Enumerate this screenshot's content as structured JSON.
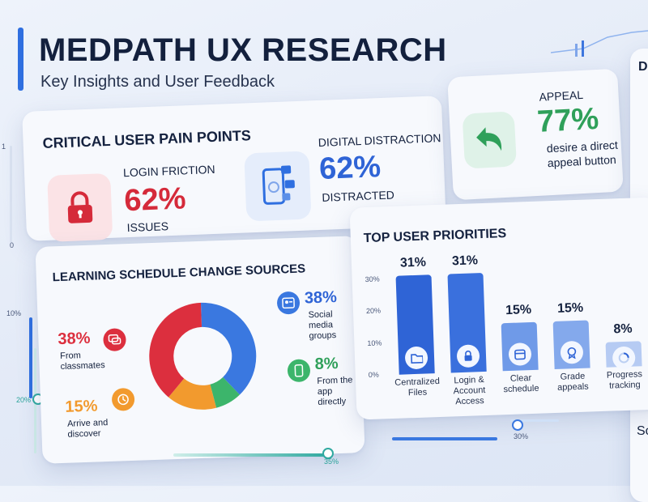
{
  "header": {
    "title": "MEDPATH UX RESEARCH",
    "subtitle": "Key Insights and User Feedback"
  },
  "pain_points": {
    "heading": "CRITICAL USER PAIN POINTS",
    "login": {
      "label": "LOGIN FRICTION",
      "value": "62%",
      "caption": "ISSUES",
      "icon": "lock-icon"
    },
    "distraction": {
      "label": "DIGITAL DISTRACTION",
      "value": "62%",
      "caption": "DISTRACTED",
      "icon": "phone-icon"
    }
  },
  "appeal": {
    "label": "APPEAL",
    "value": "77%",
    "caption_line1": "desire a direct",
    "caption_line2": "appeal button",
    "icon": "undo-arrow-icon"
  },
  "schedule_sources": {
    "heading": "LEARNING SCHEDULE CHANGE SOURCES",
    "segments": [
      {
        "value": "38%",
        "label_line1": "From",
        "label_line2": "classmates",
        "label_line3": "",
        "percent": 38,
        "color": "#dc2f3e",
        "icon": "chat-icon"
      },
      {
        "value": "38%",
        "label_line1": "Social",
        "label_line2": "media",
        "label_line3": "groups",
        "percent": 38,
        "color": "#3a78e0",
        "icon": "social-icon"
      },
      {
        "value": "8%",
        "label_line1": "From the",
        "label_line2": "app",
        "label_line3": "directly",
        "percent": 8,
        "color": "#3cb56b",
        "icon": "mobile-icon"
      },
      {
        "value": "15%",
        "label_line1": "Arrive and",
        "label_line2": "discover",
        "label_line3": "",
        "percent": 15,
        "color": "#f29a2e",
        "icon": "clock-icon"
      }
    ]
  },
  "priorities": {
    "heading": "TOP USER PRIORITIES",
    "ticks": [
      "30%",
      "20%",
      "10%",
      "0%"
    ],
    "bars": [
      {
        "value": "31%",
        "percent": 31,
        "label": "Centralized\nFiles",
        "color": "#2f64d6",
        "icon": "folder-icon"
      },
      {
        "value": "31%",
        "percent": 31,
        "label": "Login &\nAccount\nAccess",
        "color": "#3a70dd",
        "icon": "lock-icon"
      },
      {
        "value": "15%",
        "percent": 15,
        "label": "Clear\nschedule",
        "color": "#6f9ae8",
        "icon": "calendar-icon"
      },
      {
        "value": "15%",
        "percent": 15,
        "label": "Grade\nappeals",
        "color": "#84a9ec",
        "icon": "badge-icon"
      },
      {
        "value": "8%",
        "percent": 8,
        "label": "Progress\ntracking",
        "color": "#b6cbf3",
        "icon": "progress-icon"
      }
    ]
  },
  "side_axis": {
    "top": "1",
    "bottom": "0"
  },
  "left_slider": {
    "top": "10%",
    "bottom": "20%"
  },
  "bottom_sliders": {
    "left_value": "35%",
    "right_value": "30%"
  },
  "right_panel": {
    "heading_fragment": "D",
    "text_fragment": "So"
  }
}
